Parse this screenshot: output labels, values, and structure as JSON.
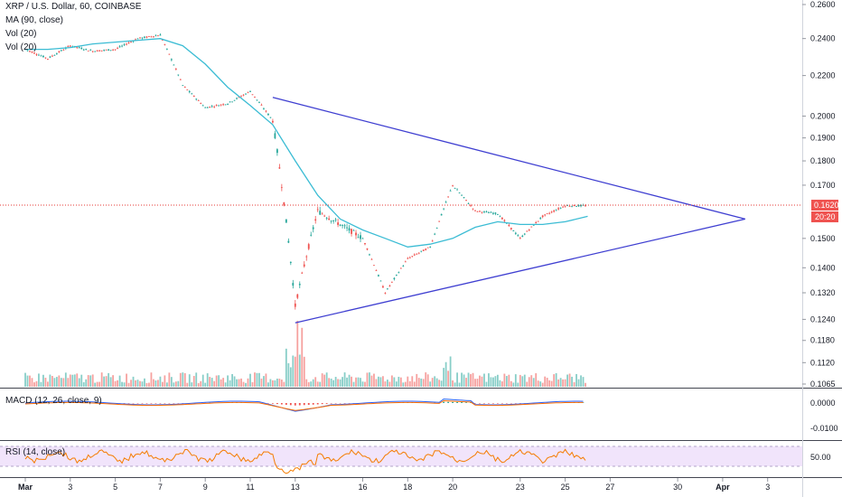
{
  "header": {
    "symbol_line": "XRP / U.S. Dollar, 60, COINBASE",
    "ma_label": "MA (90, close)",
    "vol_label_1": "Vol (20)",
    "vol_label_2": "Vol (20)"
  },
  "macd_panel": {
    "label": "MACD (12, 26, close, 9)"
  },
  "rsi_panel": {
    "label": "RSI (14, close)"
  },
  "price_axis": {
    "ticks": [
      "0.2600",
      "0.2400",
      "0.2200",
      "0.2000",
      "0.1900",
      "0.1800",
      "0.1700",
      "0.1620",
      "0.1500",
      "0.1400",
      "0.1320",
      "0.1240",
      "0.1180",
      "0.1120",
      "0.1065"
    ],
    "current_price": "0.1620",
    "countdown": "20:20"
  },
  "macd_axis": {
    "ticks": [
      "0.0000",
      "-0.0100"
    ]
  },
  "rsi_axis": {
    "ticks": [
      "50.00"
    ]
  },
  "time_axis": {
    "ticks": [
      "Mar",
      "3",
      "5",
      "7",
      "9",
      "11",
      "13",
      "16",
      "18",
      "20",
      "23",
      "25",
      "27",
      "30",
      "Apr",
      "3"
    ]
  },
  "colors": {
    "up": "#26a69a",
    "down": "#ef5350",
    "ma": "#3bbcd4",
    "trendline": "#3f3fd1",
    "price_line": "#e53935",
    "macd": "#2962ff",
    "signal": "#ff6d00",
    "rsi": "#f57c00",
    "rsi_band": "#e9d8f5"
  },
  "chart_data": {
    "type": "candlestick",
    "title": "XRP / U.S. Dollar, 60, COINBASE",
    "x_range": [
      "2019-03-01",
      "2019-04-03"
    ],
    "y_scale": "log",
    "ylim": [
      0.1065,
      0.26
    ],
    "price_series": [
      {
        "x": "Mar 1",
        "y": 0.234
      },
      {
        "x": "Mar 2",
        "y": 0.229
      },
      {
        "x": "Mar 3",
        "y": 0.236
      },
      {
        "x": "Mar 4",
        "y": 0.233
      },
      {
        "x": "Mar 5",
        "y": 0.234
      },
      {
        "x": "Mar 6",
        "y": 0.24
      },
      {
        "x": "Mar 7",
        "y": 0.242
      },
      {
        "x": "Mar 8",
        "y": 0.215
      },
      {
        "x": "Mar 9",
        "y": 0.204
      },
      {
        "x": "Mar 10",
        "y": 0.206
      },
      {
        "x": "Mar 11",
        "y": 0.212
      },
      {
        "x": "Mar 12",
        "y": 0.198
      },
      {
        "x": "Mar 13",
        "y": 0.128
      },
      {
        "x": "Mar 14",
        "y": 0.16
      },
      {
        "x": "Mar 15",
        "y": 0.155
      },
      {
        "x": "Mar 16",
        "y": 0.15
      },
      {
        "x": "Mar 17",
        "y": 0.132
      },
      {
        "x": "Mar 18",
        "y": 0.143
      },
      {
        "x": "Mar 19",
        "y": 0.147
      },
      {
        "x": "Mar 20",
        "y": 0.17
      },
      {
        "x": "Mar 21",
        "y": 0.16
      },
      {
        "x": "Mar 22",
        "y": 0.159
      },
      {
        "x": "Mar 23",
        "y": 0.15
      },
      {
        "x": "Mar 24",
        "y": 0.158
      },
      {
        "x": "Mar 25",
        "y": 0.162
      },
      {
        "x": "Mar 26",
        "y": 0.162
      }
    ],
    "moving_average": {
      "name": "MA (90, close)",
      "values": [
        0.234,
        0.234,
        0.235,
        0.237,
        0.238,
        0.239,
        0.24,
        0.236,
        0.226,
        0.214,
        0.205,
        0.196,
        0.18,
        0.166,
        0.157,
        0.153,
        0.15,
        0.147,
        0.148,
        0.15,
        0.154,
        0.156,
        0.155,
        0.155,
        0.156,
        0.158
      ]
    },
    "trendlines": [
      {
        "from": {
          "x": "Mar 12",
          "y": 0.209
        },
        "to": {
          "x": "Apr 2",
          "y": 0.157
        }
      },
      {
        "from": {
          "x": "Mar 13",
          "y": 0.123
        },
        "to": {
          "x": "Apr 2",
          "y": 0.157
        }
      }
    ],
    "macd": {
      "name": "MACD (12, 26, close, 9)",
      "ylim": [
        -0.015,
        0.005
      ]
    },
    "rsi": {
      "name": "RSI (14, close)",
      "band": [
        30,
        70
      ],
      "mid": 50
    }
  }
}
